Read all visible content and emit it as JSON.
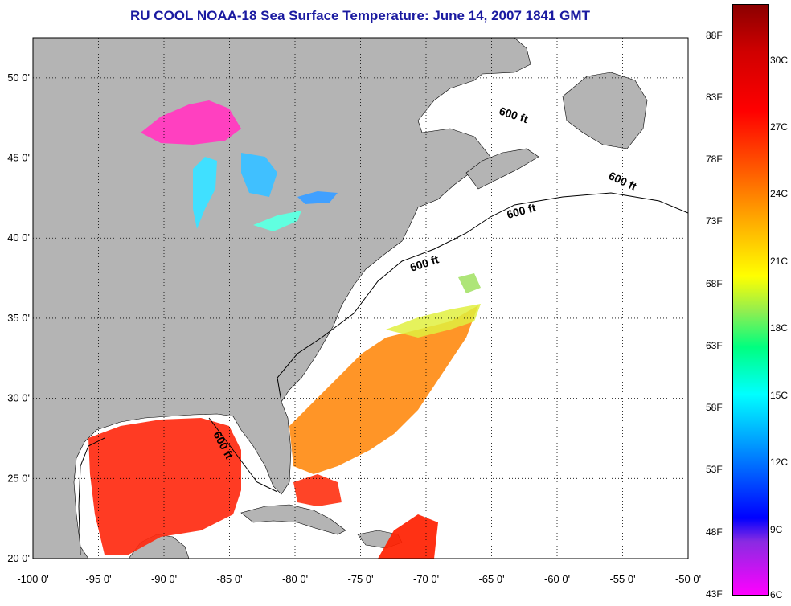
{
  "title": "RU COOL  NOAA-18  Sea Surface Temperature:  June 14, 2007 1841 GMT",
  "map": {
    "lon_range": [
      -100,
      -50
    ],
    "lat_range": [
      20,
      52.5
    ],
    "lon_ticks": [
      "-100 0'",
      "-95 0'",
      "-90 0'",
      "-85 0'",
      "-80 0'",
      "-75 0'",
      "-70 0'",
      "-65 0'",
      "-60 0'",
      "-55 0'",
      "-50 0'"
    ],
    "lat_ticks": [
      "50 0'",
      "45 0'",
      "40 0'",
      "35 0'",
      "30 0'",
      "25 0'",
      "20 0'"
    ],
    "grid": "dotted",
    "contour_labels": [
      "600 ft",
      "600 ft",
      "600 ft",
      "600 ft",
      "600 ft"
    ],
    "land_color": "#b4b4b4",
    "water_color": "#ffffff"
  },
  "colorbar": {
    "fahrenheit": [
      "88F",
      "83F",
      "78F",
      "73F",
      "68F",
      "63F",
      "58F",
      "53F",
      "48F",
      "43F"
    ],
    "celsius": [
      "30C",
      "27C",
      "24C",
      "21C",
      "18C",
      "15C",
      "12C",
      "9C",
      "6C"
    ]
  }
}
